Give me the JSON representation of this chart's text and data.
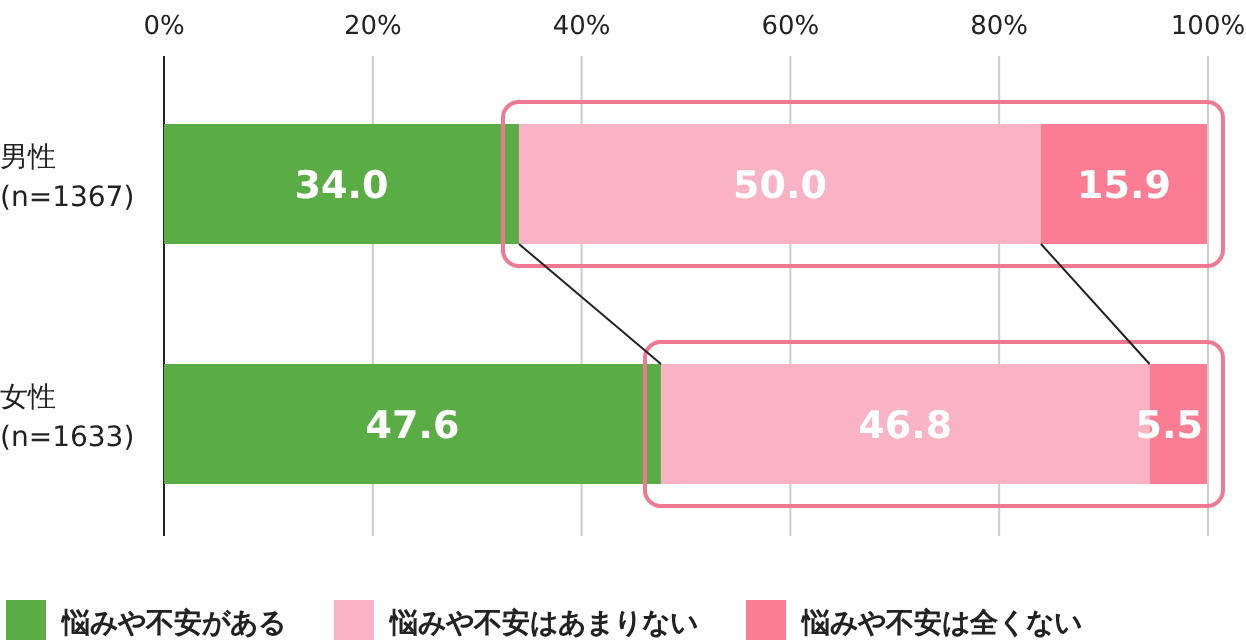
{
  "chart_data": {
    "type": "bar",
    "orientation": "horizontal",
    "stacked": true,
    "categories": [
      "男性\n(n=1367)",
      "女性\n(n=1633)"
    ],
    "series": [
      {
        "name": "悩みや不安がある",
        "color": "#5aac44",
        "values": [
          34.0,
          47.6
        ],
        "value_labels": [
          "34.0",
          "47.6"
        ]
      },
      {
        "name": "悩みや不安はあまりない",
        "color": "#f9b3c4",
        "values": [
          50.0,
          46.8
        ],
        "value_labels": [
          "50.0",
          "46.8"
        ]
      },
      {
        "name": "悩みや不安は全くない",
        "color": "#fb7d93",
        "values": [
          15.9,
          5.5
        ],
        "value_labels": [
          "15.9",
          "5.5"
        ]
      }
    ],
    "xlim": [
      0,
      100
    ],
    "xticks": [
      {
        "value": 0,
        "label": "0%"
      },
      {
        "value": 20,
        "label": "20%"
      },
      {
        "value": 40,
        "label": "40%"
      },
      {
        "value": 60,
        "label": "60%"
      },
      {
        "value": 80,
        "label": "80%"
      },
      {
        "value": 100,
        "label": "100%"
      }
    ],
    "grid": "x",
    "legend": "bottom"
  }
}
